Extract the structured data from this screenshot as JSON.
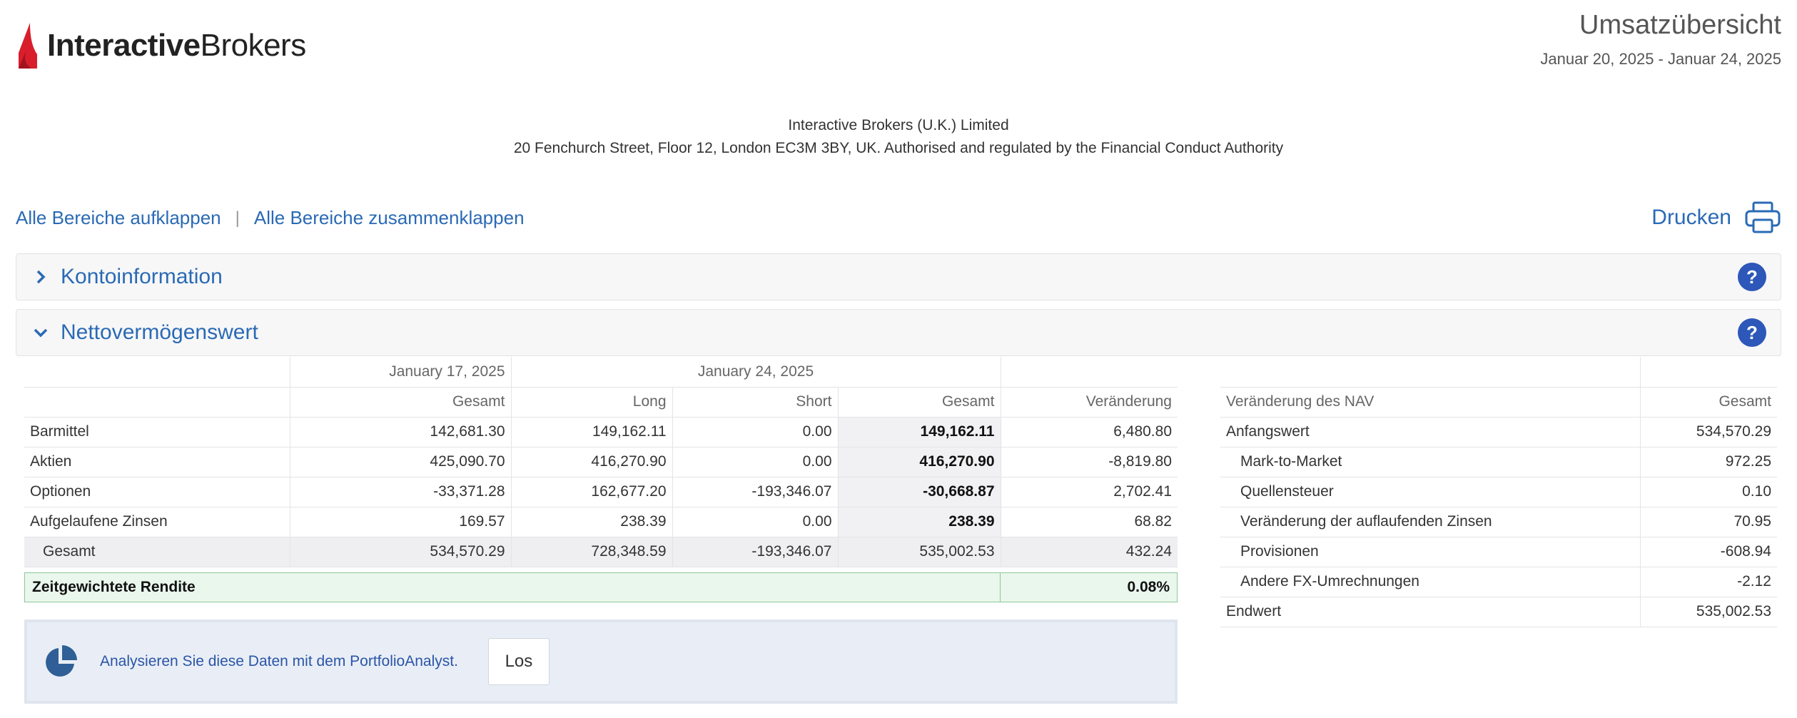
{
  "brand": {
    "name_bold": "Interactive",
    "name_light": "Brokers",
    "accent_color": "#d81e2c"
  },
  "header": {
    "title": "Umsatzübersicht",
    "date_range": "Januar 20, 2025 - Januar 24, 2025"
  },
  "broker": {
    "name": "Interactive Brokers (U.K.) Limited",
    "address": "20 Fenchurch Street, Floor 12, London EC3M 3BY, UK. Authorised and regulated by the Financial Conduct Authority"
  },
  "toolbar": {
    "expand_all": "Alle Bereiche aufklappen",
    "separator": "|",
    "collapse_all": "Alle Bereiche zusammenklappen",
    "print": "Drucken"
  },
  "sections": [
    {
      "label": "Kontoinformation",
      "expanded": false,
      "help": "?"
    },
    {
      "label": "Nettovermögenswert",
      "expanded": true,
      "help": "?"
    }
  ],
  "nav": {
    "group_headers": [
      "January 17, 2025",
      "January 24, 2025"
    ],
    "columns": [
      "Gesamt",
      "Long",
      "Short",
      "Gesamt",
      "Veränderung"
    ],
    "rows": [
      {
        "label": "Barmittel",
        "prev_total": "142,681.30",
        "long": "149,162.11",
        "short": "0.00",
        "total": "149,162.11",
        "change": "6,480.80"
      },
      {
        "label": "Aktien",
        "prev_total": "425,090.70",
        "long": "416,270.90",
        "short": "0.00",
        "total": "416,270.90",
        "change": "-8,819.80"
      },
      {
        "label": "Optionen",
        "prev_total": "-33,371.28",
        "long": "162,677.20",
        "short": "-193,346.07",
        "total": "-30,668.87",
        "change": "2,702.41"
      },
      {
        "label": "Aufgelaufene Zinsen",
        "prev_total": "169.57",
        "long": "238.39",
        "short": "0.00",
        "total": "238.39",
        "change": "68.82"
      }
    ],
    "total_row": {
      "label": "Gesamt",
      "prev_total": "534,570.29",
      "long": "728,348.59",
      "short": "-193,346.07",
      "total": "535,002.53",
      "change": "432.24"
    },
    "twr": {
      "label": "Zeitgewichtete Rendite",
      "value": "0.08%"
    }
  },
  "portfolio_analyst": {
    "text": "Analysieren Sie diese Daten mit dem PortfolioAnalyst.",
    "button": "Los"
  },
  "nav_change": {
    "header_label": "Veränderung des NAV",
    "header_value": "Gesamt",
    "rows": [
      {
        "label": "Anfangswert",
        "value": "534,570.29",
        "indent": false
      },
      {
        "label": "Mark-to-Market",
        "value": "972.25",
        "indent": true
      },
      {
        "label": "Quellensteuer",
        "value": "0.10",
        "indent": true
      },
      {
        "label": "Veränderung der auflaufenden Zinsen",
        "value": "70.95",
        "indent": true
      },
      {
        "label": "Provisionen",
        "value": "-608.94",
        "indent": true
      },
      {
        "label": "Andere FX-Umrechnungen",
        "value": "-2.12",
        "indent": true
      },
      {
        "label": "Endwert",
        "value": "535,002.53",
        "indent": false
      }
    ]
  },
  "colors": {
    "link": "#2a6ab5",
    "help_badge": "#2d57b8",
    "twr_bg": "#eaf7ec",
    "twr_border": "#8ac99b"
  }
}
